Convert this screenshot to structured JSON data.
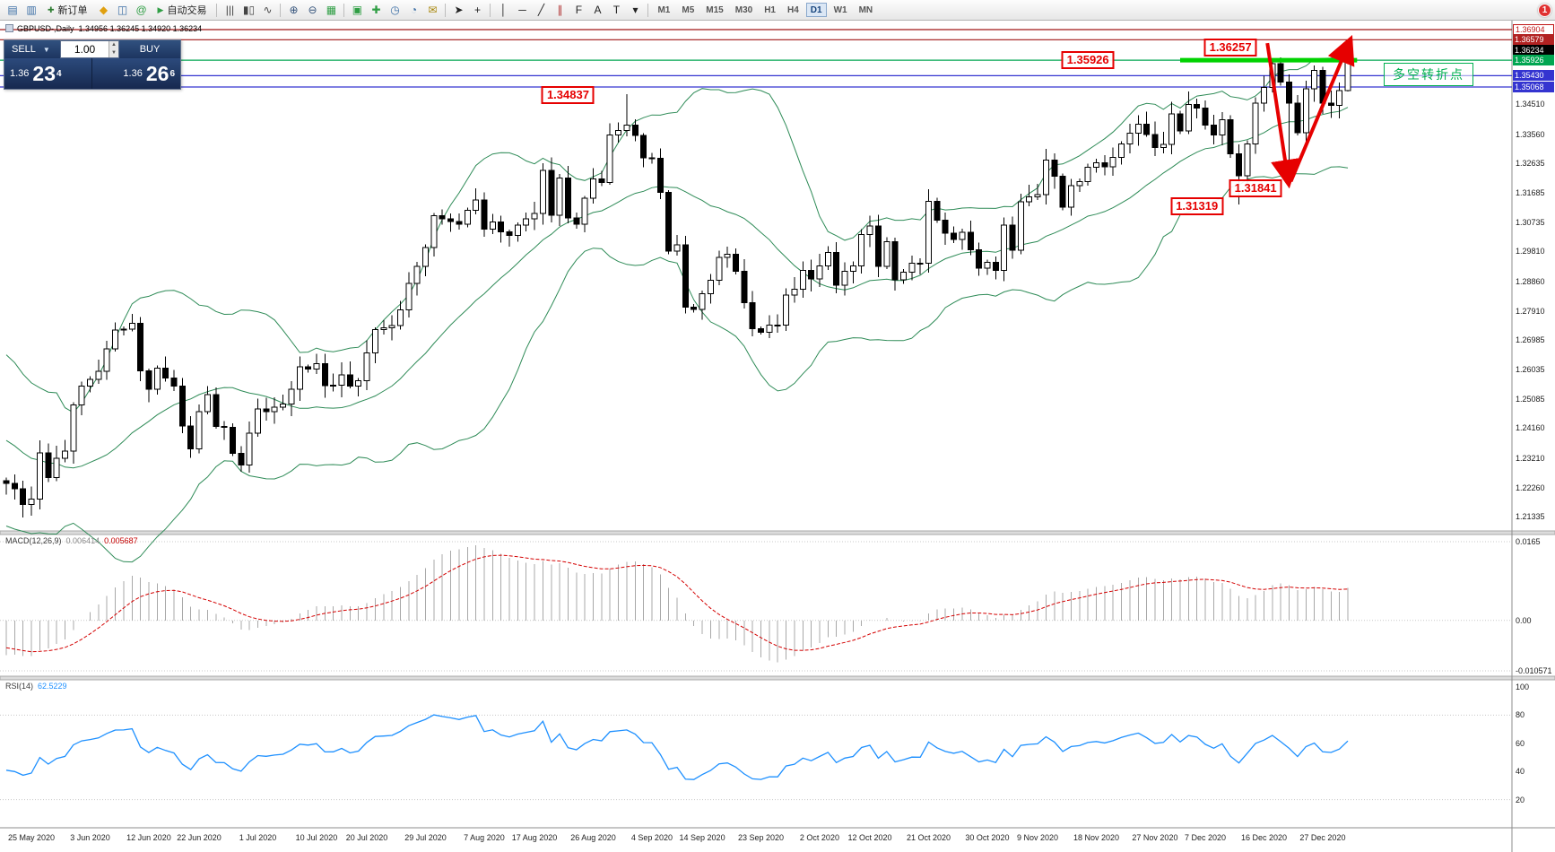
{
  "window": {
    "badge": "1"
  },
  "toolbar": {
    "items": [
      {
        "t": "i",
        "n": "new-chart-icon",
        "g": "▤",
        "c": "#3b6ea5"
      },
      {
        "t": "i",
        "n": "chart-profiles-icon",
        "g": "▥",
        "c": "#3b6ea5"
      },
      {
        "t": "b",
        "n": "new-order-button",
        "g": "✚",
        "c": "#2e7d32",
        "label": "新订单"
      },
      {
        "t": "i",
        "n": "market-watch-icon",
        "g": "◆",
        "c": "#e0a010"
      },
      {
        "t": "i",
        "n": "data-window-icon",
        "g": "◫",
        "c": "#3b6ea5"
      },
      {
        "t": "i",
        "n": "navigator-icon",
        "g": "@",
        "c": "#2f9e44"
      },
      {
        "t": "b",
        "n": "autotrading-button",
        "g": "▶",
        "c": "#2f9e44",
        "label": "自动交易"
      },
      {
        "t": "s"
      },
      {
        "t": "i",
        "n": "bar-chart-icon",
        "g": "|||",
        "c": "#444"
      },
      {
        "t": "i",
        "n": "candlestick-chart-icon",
        "g": "▮▯",
        "c": "#444"
      },
      {
        "t": "i",
        "n": "line-chart-icon",
        "g": "∿",
        "c": "#444"
      },
      {
        "t": "s"
      },
      {
        "t": "i",
        "n": "zoom-in-icon",
        "g": "⊕",
        "c": "#33527a"
      },
      {
        "t": "i",
        "n": "zoom-out-icon",
        "g": "⊖",
        "c": "#33527a"
      },
      {
        "t": "i",
        "n": "tile-windows-icon",
        "g": "▦",
        "c": "#2f9e44"
      },
      {
        "t": "s"
      },
      {
        "t": "i",
        "n": "arrange-windows-icon",
        "g": "▣",
        "c": "#2f9e44"
      },
      {
        "t": "i",
        "n": "new-window-icon",
        "g": "✚",
        "c": "#2f9e44"
      },
      {
        "t": "i",
        "n": "period-sync-icon",
        "g": "◷",
        "c": "#3b6ea5"
      },
      {
        "t": "i",
        "n": "history-icon",
        "g": "◔",
        "c": "#3b6ea5"
      },
      {
        "t": "i",
        "n": "mail-icon",
        "g": "✉",
        "c": "#a8860a"
      },
      {
        "t": "s"
      },
      {
        "t": "i",
        "n": "cursor-icon",
        "g": "➤",
        "c": "#222"
      },
      {
        "t": "i",
        "n": "crosshair-icon",
        "g": "+",
        "c": "#222"
      },
      {
        "t": "s"
      },
      {
        "t": "i",
        "n": "vertical-line-icon",
        "g": "│",
        "c": "#222"
      },
      {
        "t": "i",
        "n": "horizontal-line-icon",
        "g": "─",
        "c": "#222"
      },
      {
        "t": "i",
        "n": "trendline-icon",
        "g": "╱",
        "c": "#222"
      },
      {
        "t": "i",
        "n": "channel-icon",
        "g": "∥",
        "c": "#b03030"
      },
      {
        "t": "i",
        "n": "fibonacci-icon",
        "g": "F",
        "c": "#222"
      },
      {
        "t": "i",
        "n": "text-icon",
        "g": "A",
        "c": "#222"
      },
      {
        "t": "i",
        "n": "label-icon",
        "g": "T",
        "c": "#222"
      },
      {
        "t": "i",
        "n": "shapes-dropdown-icon",
        "g": "▾",
        "c": "#222"
      },
      {
        "t": "s"
      }
    ],
    "timeframes": [
      "M1",
      "M5",
      "M15",
      "M30",
      "H1",
      "H4",
      "D1",
      "W1",
      "MN"
    ],
    "active_timeframe": "D1",
    "new_order_label": "新订单",
    "autotrading_label": "自动交易"
  },
  "chart": {
    "symbol_period": "GBPUSD-,Daily",
    "ohlc": "1.34956 1.36245 1.34920 1.36234"
  },
  "one_click": {
    "sell_label": "SELL",
    "buy_label": "BUY",
    "volume": "1.00",
    "sell_price_small": "1.36",
    "sell_price_big": "23",
    "sell_price_sup": "4",
    "buy_price_small": "1.36",
    "buy_price_big": "26",
    "buy_price_sup": "6"
  },
  "price_axis": {
    "tags": [
      {
        "text": "1.36904",
        "color": "#c01616",
        "style": "outline"
      },
      {
        "text": "1.36579",
        "color": "#b22222",
        "style": "solid"
      },
      {
        "text": "1.36234",
        "color": "#000000",
        "style": "solid"
      },
      {
        "text": "1.35926",
        "color": "#00a651",
        "style": "solid"
      },
      {
        "text": "1.35430",
        "color": "#3434d0",
        "style": "solid"
      },
      {
        "text": "1.35068",
        "color": "#3434d0",
        "style": "solid"
      }
    ],
    "ticks": [
      "1.34510",
      "1.33560",
      "1.32635",
      "1.31685",
      "1.30735",
      "1.29810",
      "1.28860",
      "1.27910",
      "1.26985",
      "1.26035",
      "1.25085",
      "1.24160",
      "1.23210",
      "1.22260",
      "1.21335"
    ]
  },
  "macd_panel": {
    "label": "MACD(12,26,9)",
    "value1": "0.006414",
    "value2": "0.005687",
    "ticks": [
      {
        "label": "0.0165",
        "value": 0.0165
      },
      {
        "label": "0.00",
        "value": 0
      },
      {
        "label": "-0.010571",
        "value": -0.010571
      }
    ]
  },
  "rsi_panel": {
    "label": "RSI(14)",
    "value": "62.5229",
    "ticks": [
      {
        "label": "100",
        "value": 100
      },
      {
        "label": "80",
        "value": 80
      },
      {
        "label": "60",
        "value": 60
      },
      {
        "label": "40",
        "value": 40
      },
      {
        "label": "20",
        "value": 20
      }
    ]
  },
  "note_box": {
    "text": "多空转折点"
  },
  "chart_data": {
    "type": "candlestick",
    "symbol": "GBPUSD-",
    "timeframe": "Daily",
    "y_axis": {
      "max": 1.36904,
      "min": 1.21335
    },
    "pre_closes": [
      1.252,
      1.2458,
      1.2411,
      1.2366,
      1.2319,
      1.2454,
      1.2443,
      1.2573,
      1.2612,
      1.254,
      1.2466,
      1.2429,
      1.2351,
      1.2575,
      1.2542,
      1.2434,
      1.2339,
      1.2364,
      1.241,
      1.2334,
      1.226,
      1.223,
      1.2228,
      1.217,
      1.2196,
      1.2248
    ],
    "closes": [
      1.2239,
      1.2222,
      1.2172,
      1.219,
      1.2337,
      1.2258,
      1.232,
      1.2343,
      1.249,
      1.2551,
      1.2572,
      1.2598,
      1.267,
      1.273,
      1.2733,
      1.2752,
      1.2599,
      1.2541,
      1.2608,
      1.2576,
      1.2551,
      1.2423,
      1.235,
      1.2469,
      1.2523,
      1.2421,
      1.2419,
      1.2336,
      1.2299,
      1.24,
      1.2478,
      1.2469,
      1.2484,
      1.2493,
      1.2541,
      1.2613,
      1.2605,
      1.2623,
      1.2552,
      1.2553,
      1.2587,
      1.2551,
      1.2568,
      1.2657,
      1.2731,
      1.2737,
      1.2744,
      1.2795,
      1.2879,
      1.2934,
      1.2993,
      1.3095,
      1.3085,
      1.3077,
      1.3068,
      1.3112,
      1.3145,
      1.3052,
      1.3076,
      1.3044,
      1.3032,
      1.3065,
      1.3085,
      1.3103,
      1.324,
      1.3097,
      1.3216,
      1.3089,
      1.3068,
      1.3152,
      1.3213,
      1.3201,
      1.3353,
      1.3368,
      1.3385,
      1.3352,
      1.328,
      1.3279,
      1.317,
      1.2982,
      1.3002,
      1.2803,
      1.2796,
      1.2846,
      1.2889,
      1.2962,
      1.2972,
      1.2917,
      1.2817,
      1.2734,
      1.2722,
      1.2746,
      1.2745,
      1.2842,
      1.286,
      1.2921,
      1.2893,
      1.2935,
      1.2978,
      1.2873,
      1.2918,
      1.2935,
      1.3035,
      1.3063,
      1.2934,
      1.3012,
      1.289,
      1.2915,
      1.2944,
      1.2943,
      1.3142,
      1.3081,
      1.304,
      1.302,
      1.3043,
      1.2987,
      1.2928,
      1.2947,
      1.292,
      1.3066,
      1.2985,
      1.314,
      1.3155,
      1.3163,
      1.3273,
      1.3222,
      1.3122,
      1.3192,
      1.3205,
      1.325,
      1.3265,
      1.3252,
      1.3282,
      1.3325,
      1.3359,
      1.3388,
      1.3355,
      1.3313,
      1.3324,
      1.3421,
      1.3366,
      1.3451,
      1.344,
      1.3385,
      1.3353,
      1.3402,
      1.3293,
      1.3223,
      1.3325,
      1.3455,
      1.3505,
      1.3582,
      1.3523,
      1.3455,
      1.3361,
      1.3501,
      1.356,
      1.3455,
      1.3448,
      1.3496,
      1.36234
    ],
    "wick_overrides": {
      "74": {
        "h": 1.34837
      },
      "147": {
        "l": 1.31319
      },
      "153": {
        "l": 1.31841
      },
      "160": {
        "o": 1.34956,
        "h": 1.36245,
        "l": 1.3492,
        "c": 1.36234
      }
    },
    "x_labels": [
      [
        3,
        "25 May 2020"
      ],
      [
        10,
        "3 Jun 2020"
      ],
      [
        17,
        "12 Jun 2020"
      ],
      [
        23,
        "22 Jun 2020"
      ],
      [
        30,
        "1 Jul 2020"
      ],
      [
        37,
        "10 Jul 2020"
      ],
      [
        43,
        "20 Jul 2020"
      ],
      [
        50,
        "29 Jul 2020"
      ],
      [
        57,
        "7 Aug 2020"
      ],
      [
        63,
        "17 Aug 2020"
      ],
      [
        70,
        "26 Aug 2020"
      ],
      [
        77,
        "4 Sep 2020"
      ],
      [
        83,
        "14 Sep 2020"
      ],
      [
        90,
        "23 Sep 2020"
      ],
      [
        97,
        "2 Oct 2020"
      ],
      [
        103,
        "12 Oct 2020"
      ],
      [
        110,
        "21 Oct 2020"
      ],
      [
        117,
        "30 Oct 2020"
      ],
      [
        123,
        "9 Nov 2020"
      ],
      [
        130,
        "18 Nov 2020"
      ],
      [
        137,
        "27 Nov 2020"
      ],
      [
        143,
        "7 Dec 2020"
      ],
      [
        150,
        "16 Dec 2020"
      ],
      [
        157,
        "27 Dec 2020"
      ]
    ],
    "indicators": {
      "bollinger": {
        "period": 20,
        "deviation": 2,
        "color": "#2e8b57"
      },
      "macd": {
        "fast": 12,
        "slow": 26,
        "signal": 9,
        "hist_color": "#a8a8a8",
        "signal_color": "#d40000"
      },
      "rsi": {
        "period": 14,
        "color": "#1e90ff"
      }
    },
    "hlines": [
      {
        "price": 1.36904,
        "color": "#a01616"
      },
      {
        "price": 1.36579,
        "color": "#a01616"
      },
      {
        "price": 1.35926,
        "color": "#00a651"
      },
      {
        "price": 1.3543,
        "color": "#3434d0"
      },
      {
        "price": 1.35068,
        "color": "#3434d0"
      }
    ],
    "trend_segment": {
      "price": 1.35926,
      "from_idx": 140,
      "to_idx": 161.1,
      "color": "#00d200"
    },
    "arrows": {
      "color": "#e60000",
      "segments": [
        {
          "from_idx": 150.4,
          "from_price": 1.3647,
          "to_idx": 152.9,
          "to_price": 1.3205
        },
        {
          "from_idx": 153.2,
          "from_price": 1.3205,
          "to_idx": 160.2,
          "to_price": 1.3652
        }
      ]
    },
    "annotations": [
      {
        "text": "1.34837",
        "idx": 67,
        "price": 1.3481
      },
      {
        "text": "1.35926",
        "idx": 129,
        "price": 1.35926
      },
      {
        "text": "1.36257",
        "idx": 146,
        "price": 1.3633
      },
      {
        "text": "1.31319",
        "idx": 142,
        "price": 1.3126
      },
      {
        "text": "1.31841",
        "idx": 149,
        "price": 1.3183
      }
    ]
  }
}
